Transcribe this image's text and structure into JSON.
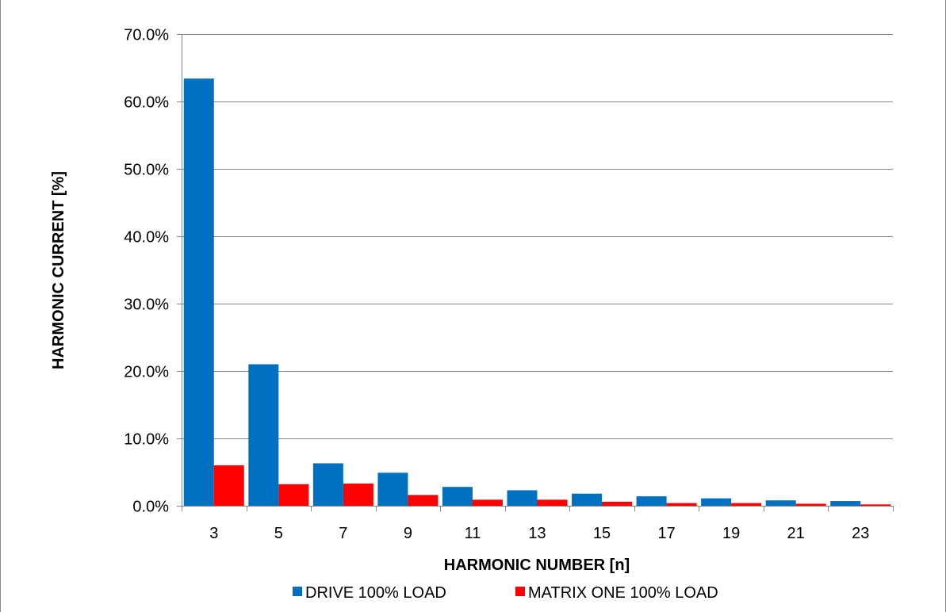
{
  "chart_data": {
    "type": "bar",
    "title": "",
    "xlabel": "HARMONIC NUMBER [n]",
    "ylabel": "HARMONIC CURRENT [%]",
    "categories": [
      "3",
      "5",
      "7",
      "9",
      "11",
      "13",
      "15",
      "17",
      "19",
      "21",
      "23"
    ],
    "series": [
      {
        "name": "DRIVE 100% LOAD",
        "color": "#0070c0",
        "values": [
          63.4,
          21.0,
          6.3,
          4.9,
          2.8,
          2.3,
          1.8,
          1.4,
          1.1,
          0.8,
          0.7
        ]
      },
      {
        "name": "MATRIX ONE 100% LOAD",
        "color": "#ff0000",
        "values": [
          6.0,
          3.2,
          3.3,
          1.6,
          0.9,
          0.9,
          0.6,
          0.4,
          0.4,
          0.3,
          0.2
        ]
      }
    ],
    "ylim": [
      0,
      70
    ],
    "yticks": [
      "0.0%",
      "10.0%",
      "20.0%",
      "30.0%",
      "40.0%",
      "50.0%",
      "60.0%",
      "70.0%"
    ],
    "grid": true,
    "legend_position": "bottom"
  }
}
